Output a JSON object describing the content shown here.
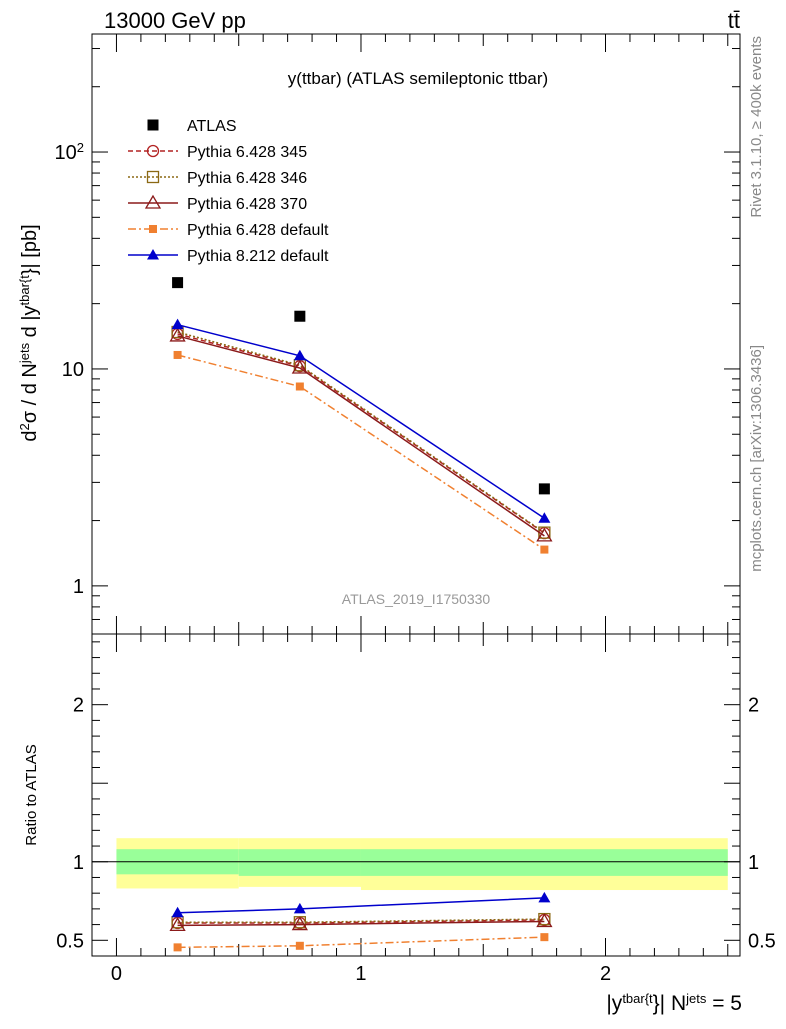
{
  "header": {
    "energy_label": "13000 GeV pp",
    "process_label": "tt̄"
  },
  "side_labels": {
    "rivet": "Rivet 3.1.10, ≥ 400k events",
    "mcplots": "mcplots.cern.ch [arXiv:1306.3436]"
  },
  "chart_data": {
    "type": "line",
    "title": "y(ttbar) (ATLAS semileptonic ttbar)",
    "analysis_id": "ATLAS_2019_I1750330",
    "x_tick_labels": [
      "0",
      "1",
      "2"
    ],
    "xlim": [
      -0.1,
      2.55
    ],
    "x": [
      0.25,
      0.75,
      1.75
    ],
    "bin_edges": [
      0,
      0.5,
      1.0,
      2.5
    ],
    "xlabel": {
      "main": "|y",
      "sup1": "tbar{t",
      "mid": "}| N",
      "sup2": "jets",
      "tail": " = 5"
    },
    "main_panel": {
      "scale": "log",
      "ylim": [
        0.6,
        350
      ],
      "y_tick_labels": [
        {
          "value": 1,
          "label": "1"
        },
        {
          "value": 10,
          "label": "10"
        },
        {
          "value": 100,
          "label": "10",
          "exp": "2"
        }
      ],
      "ylabel": {
        "p1": "d",
        "s1": "2",
        "p2": "σ / d N",
        "s2": "jets",
        "p3": " d |y",
        "s3": "tbar{t",
        "p4": "}| [pb]"
      }
    },
    "ratio_panel": {
      "ylabel": "Ratio to ATLAS",
      "ylim": [
        0.4,
        2.45
      ],
      "y_tick_labels": [
        {
          "value": 0.5,
          "label": "0.5"
        },
        {
          "value": 1,
          "label": "1"
        },
        {
          "value": 2,
          "label": "2"
        }
      ],
      "band_green": [
        [
          0.92,
          1.08
        ],
        [
          0.91,
          1.08
        ],
        [
          0.91,
          1.08
        ]
      ],
      "band_yellow": [
        [
          0.83,
          1.15
        ],
        [
          0.84,
          1.15
        ],
        [
          0.82,
          1.15
        ]
      ]
    },
    "data_series": {
      "name": "ATLAS",
      "values": [
        25.0,
        17.5,
        2.8
      ]
    },
    "series": [
      {
        "name": "Pythia 6.428 345",
        "values": [
          14.5,
          10.3,
          1.75
        ],
        "ratio": [
          0.61,
          0.61,
          0.63
        ],
        "color": "#b22222",
        "dash": "5,3",
        "marker": "circle-open"
      },
      {
        "name": "Pythia 6.428 346",
        "values": [
          14.8,
          10.4,
          1.76
        ],
        "ratio": [
          0.615,
          0.615,
          0.635
        ],
        "color": "#8b6914",
        "dash": "2,2",
        "marker": "square-open"
      },
      {
        "name": "Pythia 6.428 370",
        "values": [
          14.2,
          10.1,
          1.7
        ],
        "ratio": [
          0.595,
          0.6,
          0.62
        ],
        "color": "#8b1a1a",
        "dash": "",
        "marker": "triangle-open"
      },
      {
        "name": "Pythia 6.428 default",
        "values": [
          11.6,
          8.3,
          1.47
        ],
        "ratio": [
          0.455,
          0.465,
          0.52
        ],
        "color": "#f08030",
        "dash": "8,3,2,3",
        "marker": "square-filled"
      },
      {
        "name": "Pythia 8.212 default",
        "values": [
          16.0,
          11.5,
          2.05
        ],
        "ratio": [
          0.675,
          0.7,
          0.77
        ],
        "color": "#0000cc",
        "dash": "",
        "marker": "triangle-filled"
      }
    ]
  }
}
